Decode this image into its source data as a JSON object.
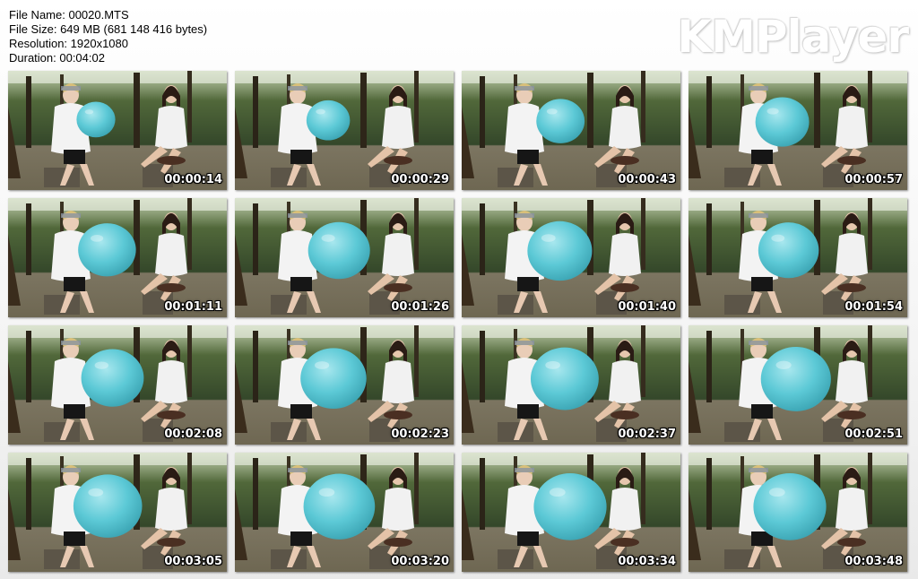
{
  "info": {
    "file_name": "File Name: 00020.MTS",
    "file_size": "File Size: 649 MB (681 148 416 bytes)",
    "resolution": "Resolution: 1920x1080",
    "duration": "Duration: 00:04:02"
  },
  "logo": "KMPlayer",
  "colors": {
    "balloon": "#5cc9d6",
    "forest": "#3f5a2c",
    "ground": "#8a7f66"
  },
  "thumbnails": [
    {
      "time": "00:00:14",
      "balloon": 0.2
    },
    {
      "time": "00:00:29",
      "balloon": 0.27
    },
    {
      "time": "00:00:43",
      "balloon": 0.34
    },
    {
      "time": "00:00:57",
      "balloon": 0.42
    },
    {
      "time": "00:01:11",
      "balloon": 0.48
    },
    {
      "time": "00:01:26",
      "balloon": 0.54
    },
    {
      "time": "00:01:40",
      "balloon": 0.58
    },
    {
      "time": "00:01:54",
      "balloon": 0.52
    },
    {
      "time": "00:02:08",
      "balloon": 0.55
    },
    {
      "time": "00:02:23",
      "balloon": 0.6
    },
    {
      "time": "00:02:37",
      "balloon": 0.63
    },
    {
      "time": "00:02:51",
      "balloon": 0.66
    },
    {
      "time": "00:03:05",
      "balloon": 0.64
    },
    {
      "time": "00:03:20",
      "balloon": 0.68
    },
    {
      "time": "00:03:34",
      "balloon": 0.7
    },
    {
      "time": "00:03:48",
      "balloon": 0.7
    }
  ]
}
